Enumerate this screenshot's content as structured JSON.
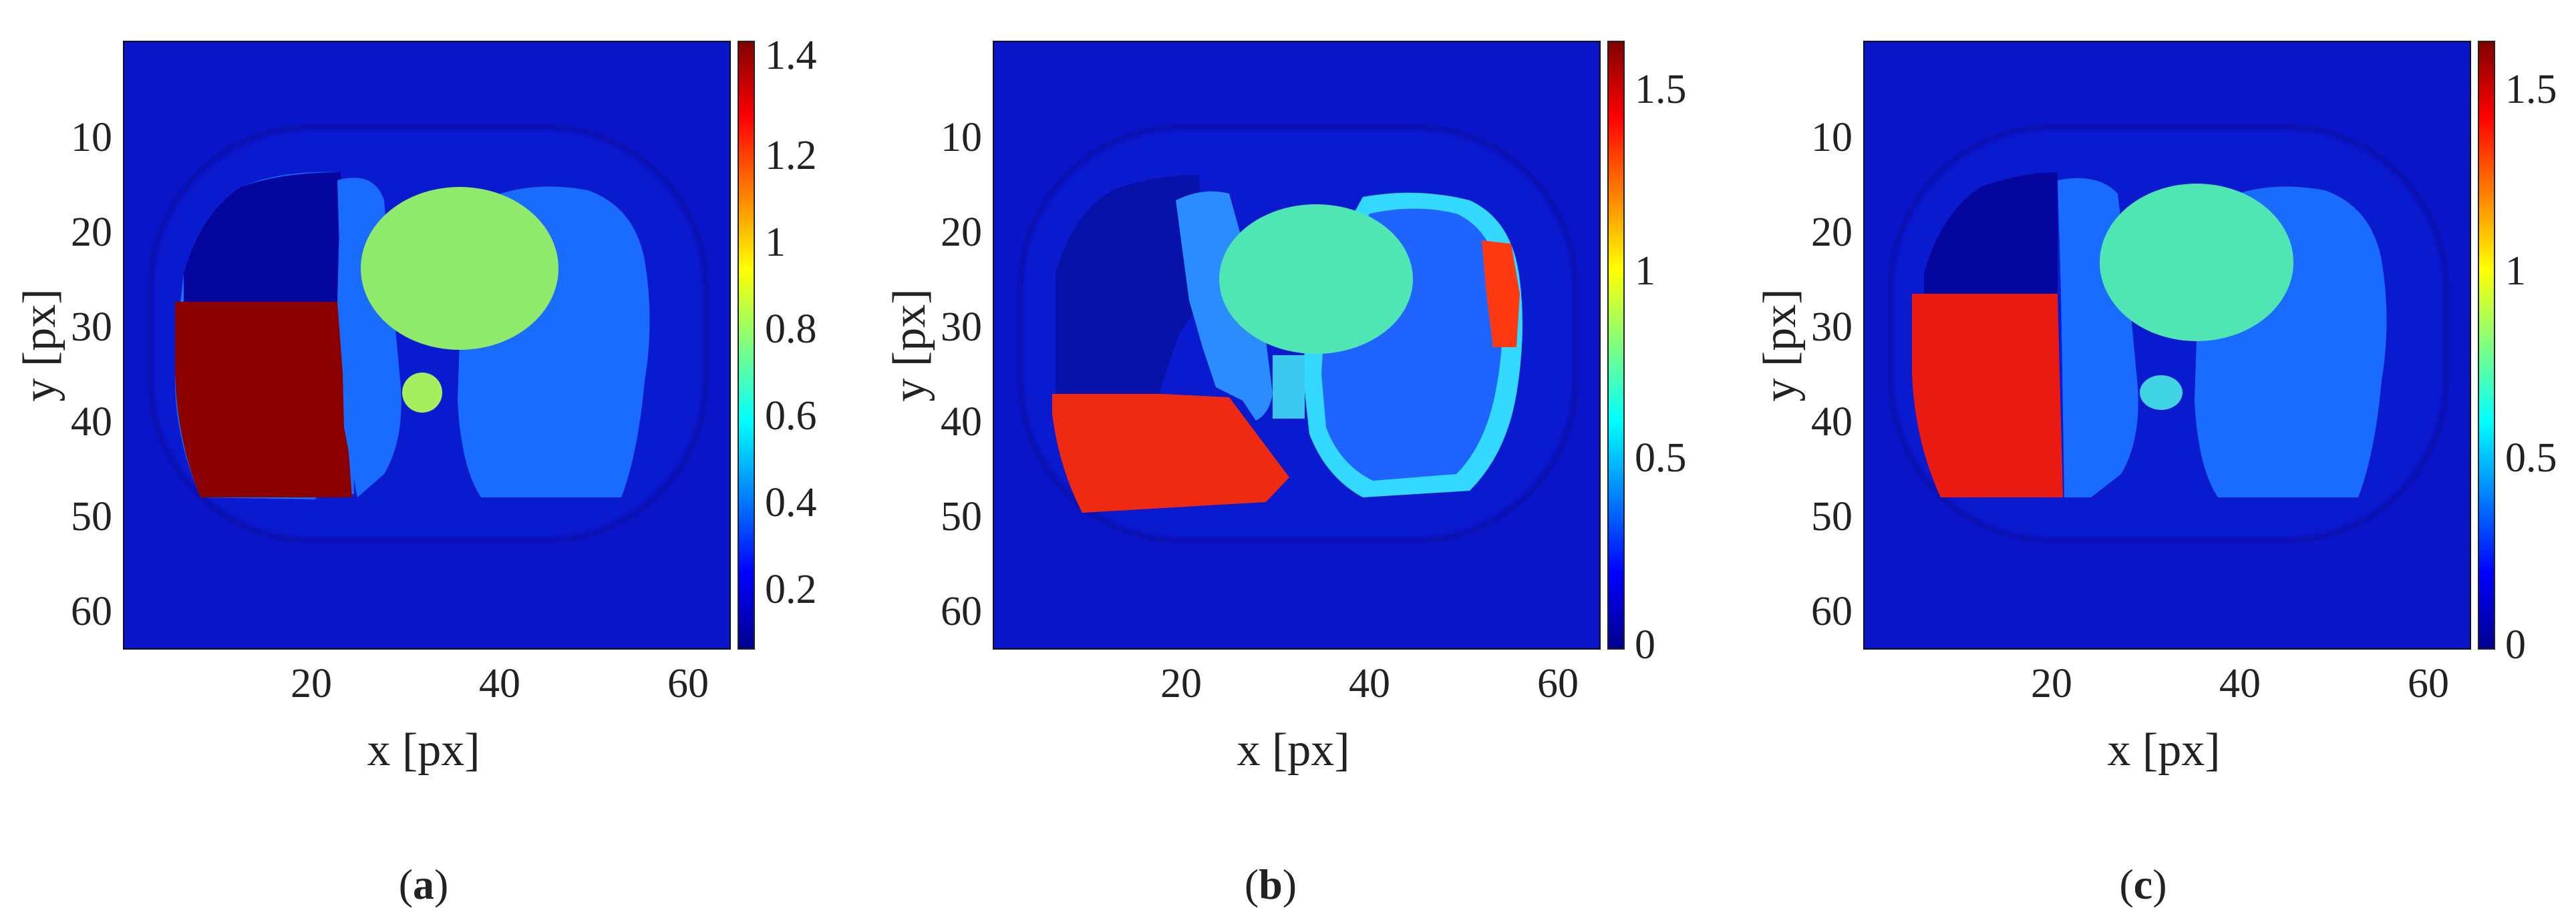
{
  "figure": {
    "panels": [
      {
        "id": "a",
        "label_parts": [
          "(",
          "a",
          ")"
        ],
        "xlabel": "x [px]",
        "ylabel": "y [px]",
        "xticks": [
          "20",
          "40",
          "60"
        ],
        "yticks": [
          "10",
          "20",
          "30",
          "40",
          "50",
          "60"
        ],
        "colorbar_ticks": [
          "0.2",
          "0.4",
          "0.6",
          "0.8",
          "1",
          "1.2",
          "1.4"
        ]
      },
      {
        "id": "b",
        "label_parts": [
          "(",
          "b",
          ")"
        ],
        "xlabel": "x [px]",
        "ylabel": "y [px]",
        "xticks": [
          "20",
          "40",
          "60"
        ],
        "yticks": [
          "10",
          "20",
          "30",
          "40",
          "50",
          "60"
        ],
        "colorbar_ticks": [
          "0",
          "0.5",
          "1",
          "1.5"
        ]
      },
      {
        "id": "c",
        "label_parts": [
          "(",
          "c",
          ")"
        ],
        "xlabel": "x [px]",
        "ylabel": "y [px]",
        "xticks": [
          "20",
          "40",
          "60"
        ],
        "yticks": [
          "10",
          "20",
          "30",
          "40",
          "50",
          "60"
        ],
        "colorbar_ticks": [
          "0",
          "0.5",
          "1",
          "1.5"
        ]
      }
    ]
  },
  "chart_data": [
    {
      "type": "heatmap",
      "panel": "a",
      "colormap": "jet",
      "xlabel": "x [px]",
      "ylabel": "y [px]",
      "xlim": [
        0.5,
        64.5
      ],
      "ylim": [
        0.5,
        64.5
      ],
      "y_reversed": true,
      "xticks": [
        20,
        40,
        60
      ],
      "yticks": [
        10,
        20,
        30,
        40,
        50,
        60
      ],
      "clim": [
        0,
        1.4
      ],
      "colorbar_ticks": [
        0.2,
        0.4,
        0.6,
        0.8,
        1,
        1.2,
        1.4
      ],
      "regions": {
        "background": 0.05,
        "body_outline": 0.08,
        "lungs": 0.35,
        "heart": 0.75,
        "aorta": 0.72,
        "upper_right_lung_quadrant": 0.1,
        "lower_right_lung_quadrant": 1.4
      }
    },
    {
      "type": "heatmap",
      "panel": "b",
      "colormap": "jet",
      "xlabel": "x [px]",
      "ylabel": "y [px]",
      "xlim": [
        0.5,
        64.5
      ],
      "ylim": [
        0.5,
        64.5
      ],
      "y_reversed": true,
      "xticks": [
        20,
        40,
        60
      ],
      "yticks": [
        10,
        20,
        30,
        40,
        50,
        60
      ],
      "clim": [
        0,
        1.62
      ],
      "colorbar_ticks": [
        0,
        0.5,
        1,
        1.5
      ],
      "regions": {
        "background": 0.05,
        "body_outline": 0.08,
        "lungs": 0.4,
        "heart": 0.7,
        "aorta": 0.6,
        "upper_right_lung_quadrant": 0.12,
        "lower_right_lung_quadrant": 1.4,
        "left_lung_rim_artifact": 1.3
      }
    },
    {
      "type": "heatmap",
      "panel": "c",
      "colormap": "jet",
      "xlabel": "x [px]",
      "ylabel": "y [px]",
      "xlim": [
        0.5,
        64.5
      ],
      "ylim": [
        0.5,
        64.5
      ],
      "y_reversed": true,
      "xticks": [
        20,
        40,
        60
      ],
      "yticks": [
        10,
        20,
        30,
        40,
        50,
        60
      ],
      "clim": [
        0,
        1.62
      ],
      "colorbar_ticks": [
        0,
        0.5,
        1,
        1.5
      ],
      "regions": {
        "background": 0.05,
        "body_outline": 0.08,
        "lungs": 0.4,
        "heart": 0.7,
        "aorta": 0.65,
        "upper_right_lung_quadrant": 0.1,
        "lower_right_lung_quadrant": 1.38
      }
    }
  ]
}
